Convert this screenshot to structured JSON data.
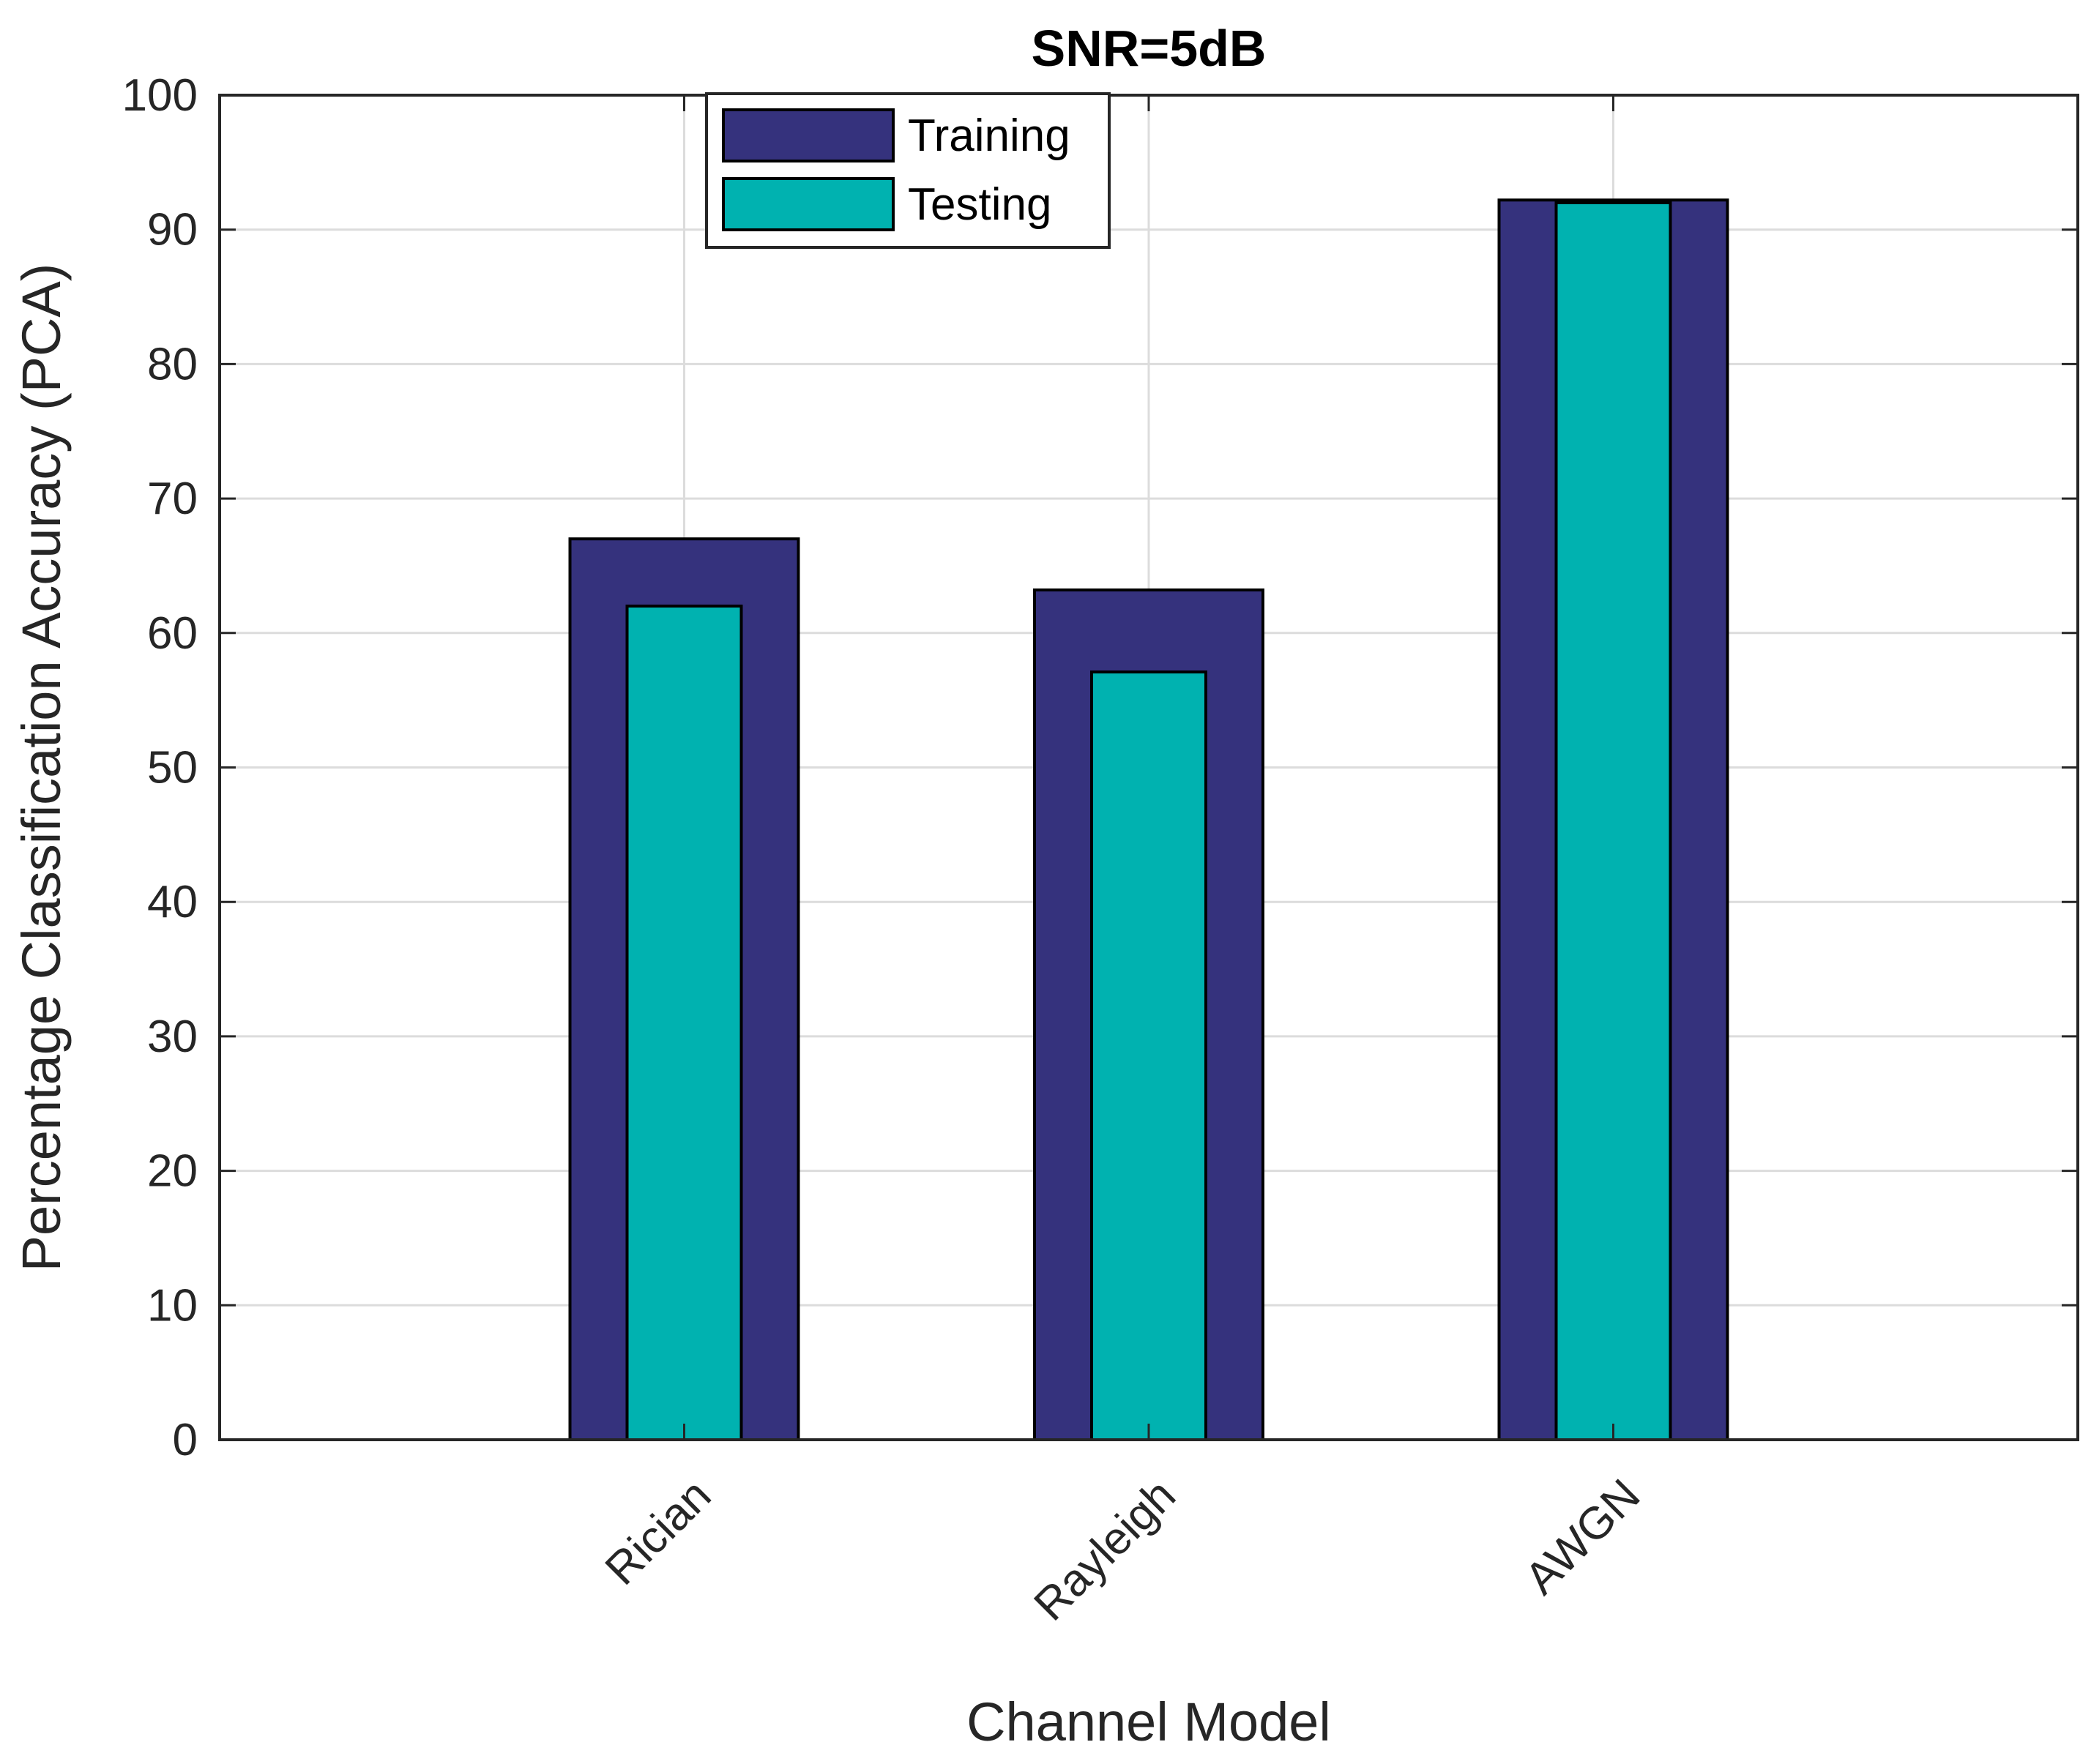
{
  "chart_data": {
    "type": "bar",
    "title": "SNR=5dB",
    "xlabel": "Channel Model",
    "ylabel": "Percentage Classification Accuracy (PCA)",
    "categories": [
      "Rician",
      "Rayleigh",
      "AWGN"
    ],
    "series": [
      {
        "name": "Training",
        "values": [
          67,
          63.2,
          92.2
        ],
        "color": "#35327d"
      },
      {
        "name": "Testing",
        "values": [
          62,
          57.1,
          92
        ],
        "color": "#00b2b0"
      }
    ],
    "ylim": [
      0,
      100
    ],
    "yticks": [
      "0",
      "10",
      "20",
      "30",
      "40",
      "50",
      "60",
      "70",
      "80",
      "90",
      "100"
    ],
    "grid": true,
    "legend_position": "top-center"
  }
}
